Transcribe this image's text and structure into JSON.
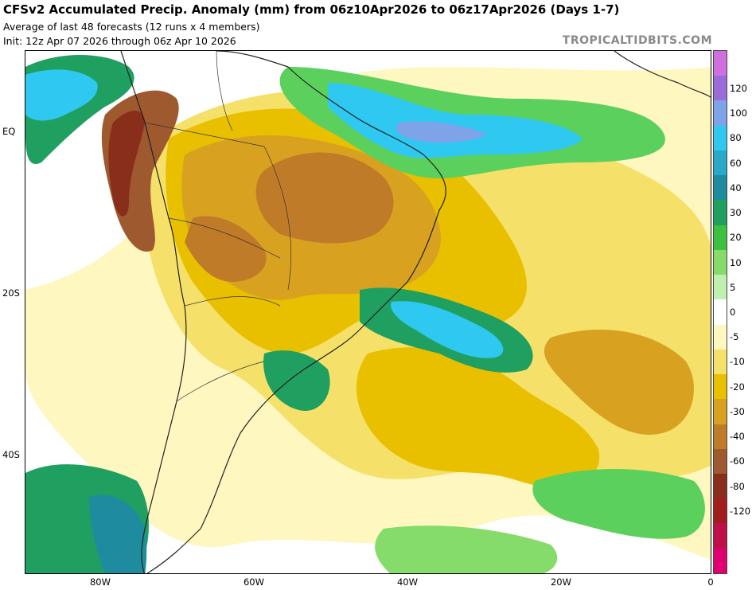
{
  "header": {
    "title": "CFSv2 Accumulated Precip. Anomaly (mm) from 06z10Apr2026 to 06z17Apr2026 (Days 1-7)",
    "subtitle": "Average of last 48 forecasts (12 runs x 4 members)",
    "init": "Init: 12z Apr 07 2026 through 06z Apr 10 2026",
    "brand": "TROPICALTIDBITS.COM"
  },
  "axes": {
    "lat_labels": [
      "EQ",
      "20S",
      "40S"
    ],
    "lon_labels": [
      "80W",
      "60W",
      "40W",
      "20W",
      "0"
    ]
  },
  "colorbar": {
    "labels": [
      "120",
      "100",
      "80",
      "60",
      "40",
      "30",
      "20",
      "10",
      "5",
      "0",
      "-5",
      "-10",
      "-20",
      "-30",
      "-40",
      "-60",
      "-80",
      "-120"
    ],
    "colors": [
      "#d070e0",
      "#9b6bd8",
      "#7fa3e8",
      "#2fc8f0",
      "#29a8c8",
      "#1e8c9e",
      "#20a060",
      "#3cc040",
      "#86dc6a",
      "#c0f0b0",
      "#ffffff",
      "#fff7c0",
      "#f5e06a",
      "#e8c000",
      "#d8a220",
      "#c07b28",
      "#9e5a2e",
      "#8a2e1c",
      "#a01e1e",
      "#c0104a",
      "#e00072"
    ]
  },
  "map": {
    "colors": {
      "wet_light": "#c0f0b0",
      "wet_mid": "#5cd05c",
      "wet_strong": "#20a060",
      "wet_teal": "#1e8c9e",
      "wet_cyan": "#2fc8f0",
      "wet_blue": "#7fa3e8",
      "dry_light": "#fff7c0",
      "dry_yellow": "#f5e06a",
      "dry_gold": "#e8c000",
      "dry_orange": "#d8a220",
      "dry_brown": "#c07b28",
      "dry_dark": "#9e5a2e",
      "dry_red": "#8a2e1c",
      "border": "#222222"
    }
  }
}
